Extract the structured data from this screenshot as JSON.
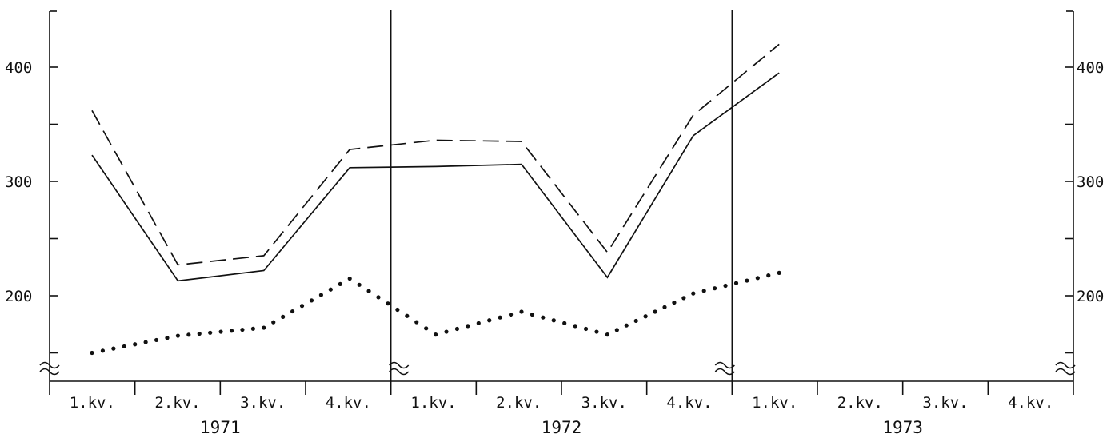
{
  "chart_data": {
    "type": "line",
    "title": "",
    "xlabel": "",
    "ylabel": "",
    "years": [
      "1971",
      "1972",
      "1973"
    ],
    "quarters": [
      "1.kv.",
      "2.kv.",
      "3.kv.",
      "4.kv."
    ],
    "ylim": [
      130,
      450
    ],
    "yticks_left": [
      "400",
      "300",
      "200"
    ],
    "yticks_right": [
      "400",
      "300",
      "200"
    ],
    "x": [
      0,
      1,
      2,
      3,
      4,
      5,
      6,
      7,
      8
    ],
    "series": [
      {
        "style": "dashed",
        "color": "#111111",
        "points": [
          [
            0,
            362
          ],
          [
            1,
            227
          ],
          [
            2,
            235
          ],
          [
            3,
            328
          ],
          [
            4,
            336
          ],
          [
            5,
            335
          ],
          [
            6,
            238
          ],
          [
            7,
            358
          ],
          [
            8,
            420
          ]
        ]
      },
      {
        "style": "solid",
        "color": "#111111",
        "points": [
          [
            0,
            323
          ],
          [
            1,
            213
          ],
          [
            2,
            222
          ],
          [
            3,
            312
          ],
          [
            4,
            313
          ],
          [
            5,
            315
          ],
          [
            6,
            216
          ],
          [
            7,
            340
          ],
          [
            8,
            395
          ]
        ]
      },
      {
        "style": "dotted",
        "color": "#111111",
        "points": [
          [
            0,
            150
          ],
          [
            1,
            165
          ],
          [
            2,
            172
          ],
          [
            3,
            215
          ],
          [
            4,
            166
          ],
          [
            5,
            186
          ],
          [
            6,
            166
          ],
          [
            7,
            202
          ],
          [
            8,
            220
          ]
        ]
      }
    ],
    "grid": false,
    "legend": "none"
  }
}
